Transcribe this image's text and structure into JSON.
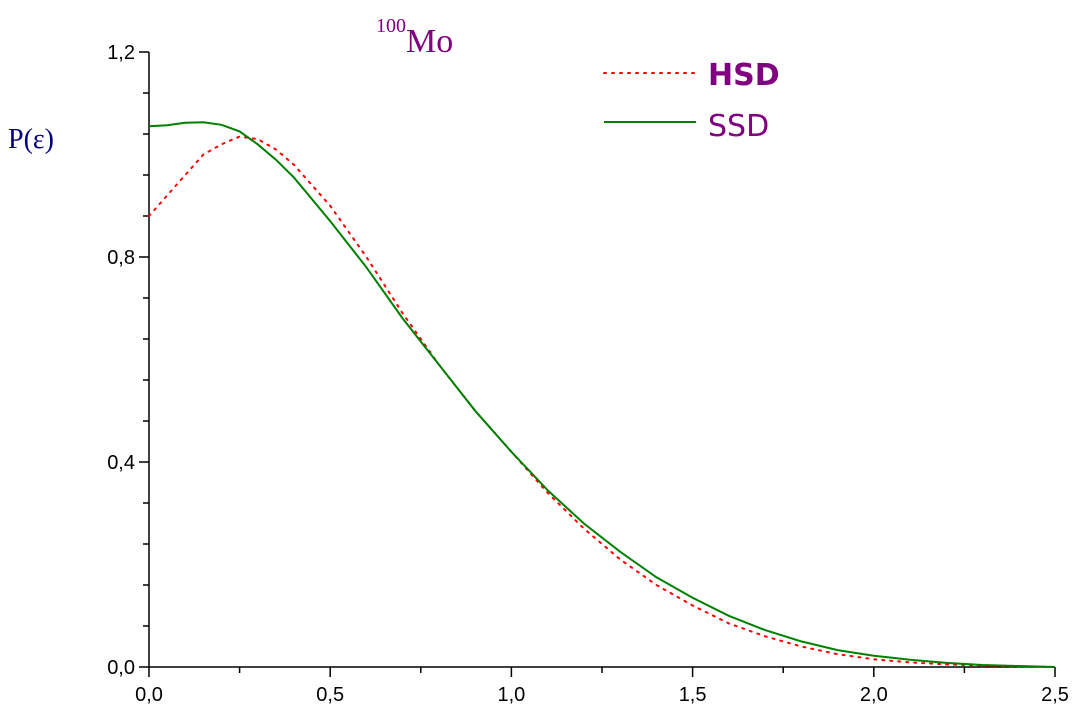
{
  "chart_data": {
    "type": "line",
    "title": {
      "sup": "100",
      "main": "Mo"
    },
    "xlabel": "",
    "ylabel": "P(ε)",
    "xlim": [
      0.0,
      2.5
    ],
    "ylim": [
      0.0,
      1.2
    ],
    "x_ticks": [
      "0,0",
      "0,5",
      "1,0",
      "1,5",
      "2,0",
      "2,5"
    ],
    "y_ticks": [
      "0,0",
      "0,4",
      "0,8",
      "1,2"
    ],
    "grid": false,
    "legend_placement": "top-right",
    "series": [
      {
        "name": "HSD",
        "style": "dotted",
        "color": "#ff0000",
        "x": [
          0.0,
          0.05,
          0.1,
          0.15,
          0.2,
          0.25,
          0.3,
          0.35,
          0.4,
          0.45,
          0.5,
          0.6,
          0.7,
          0.8,
          0.9,
          1.0,
          1.1,
          1.2,
          1.3,
          1.4,
          1.5,
          1.6,
          1.7,
          1.8,
          1.9,
          2.0,
          2.1,
          2.2,
          2.3,
          2.4,
          2.5
        ],
        "y": [
          0.88,
          0.92,
          0.96,
          1.0,
          1.02,
          1.035,
          1.03,
          1.01,
          0.98,
          0.94,
          0.9,
          0.8,
          0.69,
          0.59,
          0.5,
          0.42,
          0.34,
          0.27,
          0.21,
          0.16,
          0.12,
          0.085,
          0.06,
          0.04,
          0.025,
          0.015,
          0.009,
          0.005,
          0.003,
          0.001,
          0.0
        ]
      },
      {
        "name": "SSD",
        "style": "solid",
        "color": "#008000",
        "x": [
          0.0,
          0.05,
          0.1,
          0.15,
          0.2,
          0.25,
          0.3,
          0.35,
          0.4,
          0.5,
          0.6,
          0.7,
          0.8,
          0.9,
          1.0,
          1.1,
          1.2,
          1.3,
          1.4,
          1.5,
          1.6,
          1.7,
          1.8,
          1.9,
          2.0,
          2.1,
          2.2,
          2.3,
          2.4,
          2.5
        ],
        "y": [
          1.055,
          1.057,
          1.062,
          1.063,
          1.058,
          1.045,
          1.02,
          0.99,
          0.955,
          0.87,
          0.78,
          0.68,
          0.59,
          0.5,
          0.42,
          0.345,
          0.28,
          0.225,
          0.175,
          0.135,
          0.1,
          0.072,
          0.05,
          0.033,
          0.022,
          0.014,
          0.008,
          0.004,
          0.002,
          0.0
        ]
      }
    ]
  }
}
